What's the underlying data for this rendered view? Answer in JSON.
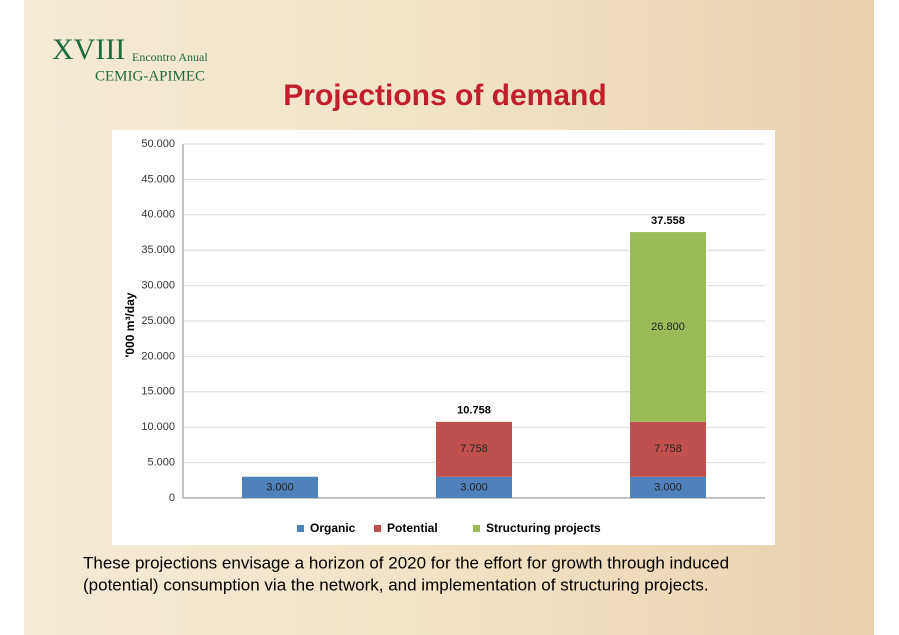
{
  "slide": {
    "logo": {
      "numeral": "XVIII",
      "event": "Encontro Anual",
      "org": "CEMIG-APIMEC"
    },
    "title": "Projections of demand",
    "caption": [
      "These projections envisage a horizon of 2020 for the effort for growth through induced",
      "(potential) consumption via the network, and implementation of structuring projects."
    ]
  },
  "chart_data": {
    "type": "stacked_bar",
    "y_label": "'000 m³/day",
    "categories": [
      null,
      null,
      null
    ],
    "series": [
      {
        "name": "Organic",
        "color": "#4f81bd",
        "values": [
          3000,
          3000,
          3000
        ],
        "value_labels": [
          "3.000",
          "3.000",
          "3.000"
        ]
      },
      {
        "name": "Potential",
        "color": "#c0504d",
        "values": [
          null,
          7758,
          7758
        ],
        "value_labels": [
          null,
          "7.758",
          "7.758"
        ]
      },
      {
        "name": "Structuring projects",
        "color": "#9bbb59",
        "values": [
          null,
          null,
          26800
        ],
        "value_labels": [
          null,
          null,
          "26.800"
        ]
      }
    ],
    "totals": {
      "values": [
        null,
        10758,
        37558
      ],
      "value_labels": [
        null,
        "10.758",
        "37.558"
      ]
    },
    "ylim": [
      0,
      50000
    ],
    "yticks": [
      0,
      {
        "value": 5000,
        "label": "5.000"
      },
      {
        "value": 10000,
        "label": "10.000"
      },
      {
        "value": 15000,
        "label": "15.000"
      },
      {
        "value": 20000,
        "label": "20.000"
      },
      {
        "value": 25000,
        "label": "25.000"
      },
      {
        "value": 30000,
        "label": "30.000"
      },
      {
        "value": 35000,
        "label": "35.000"
      },
      {
        "value": 40000,
        "label": "40.000"
      },
      {
        "value": 45000,
        "label": "45.000"
      },
      {
        "value": 50000,
        "label": "50.000"
      }
    ],
    "grid": true,
    "legend": "bottom"
  }
}
